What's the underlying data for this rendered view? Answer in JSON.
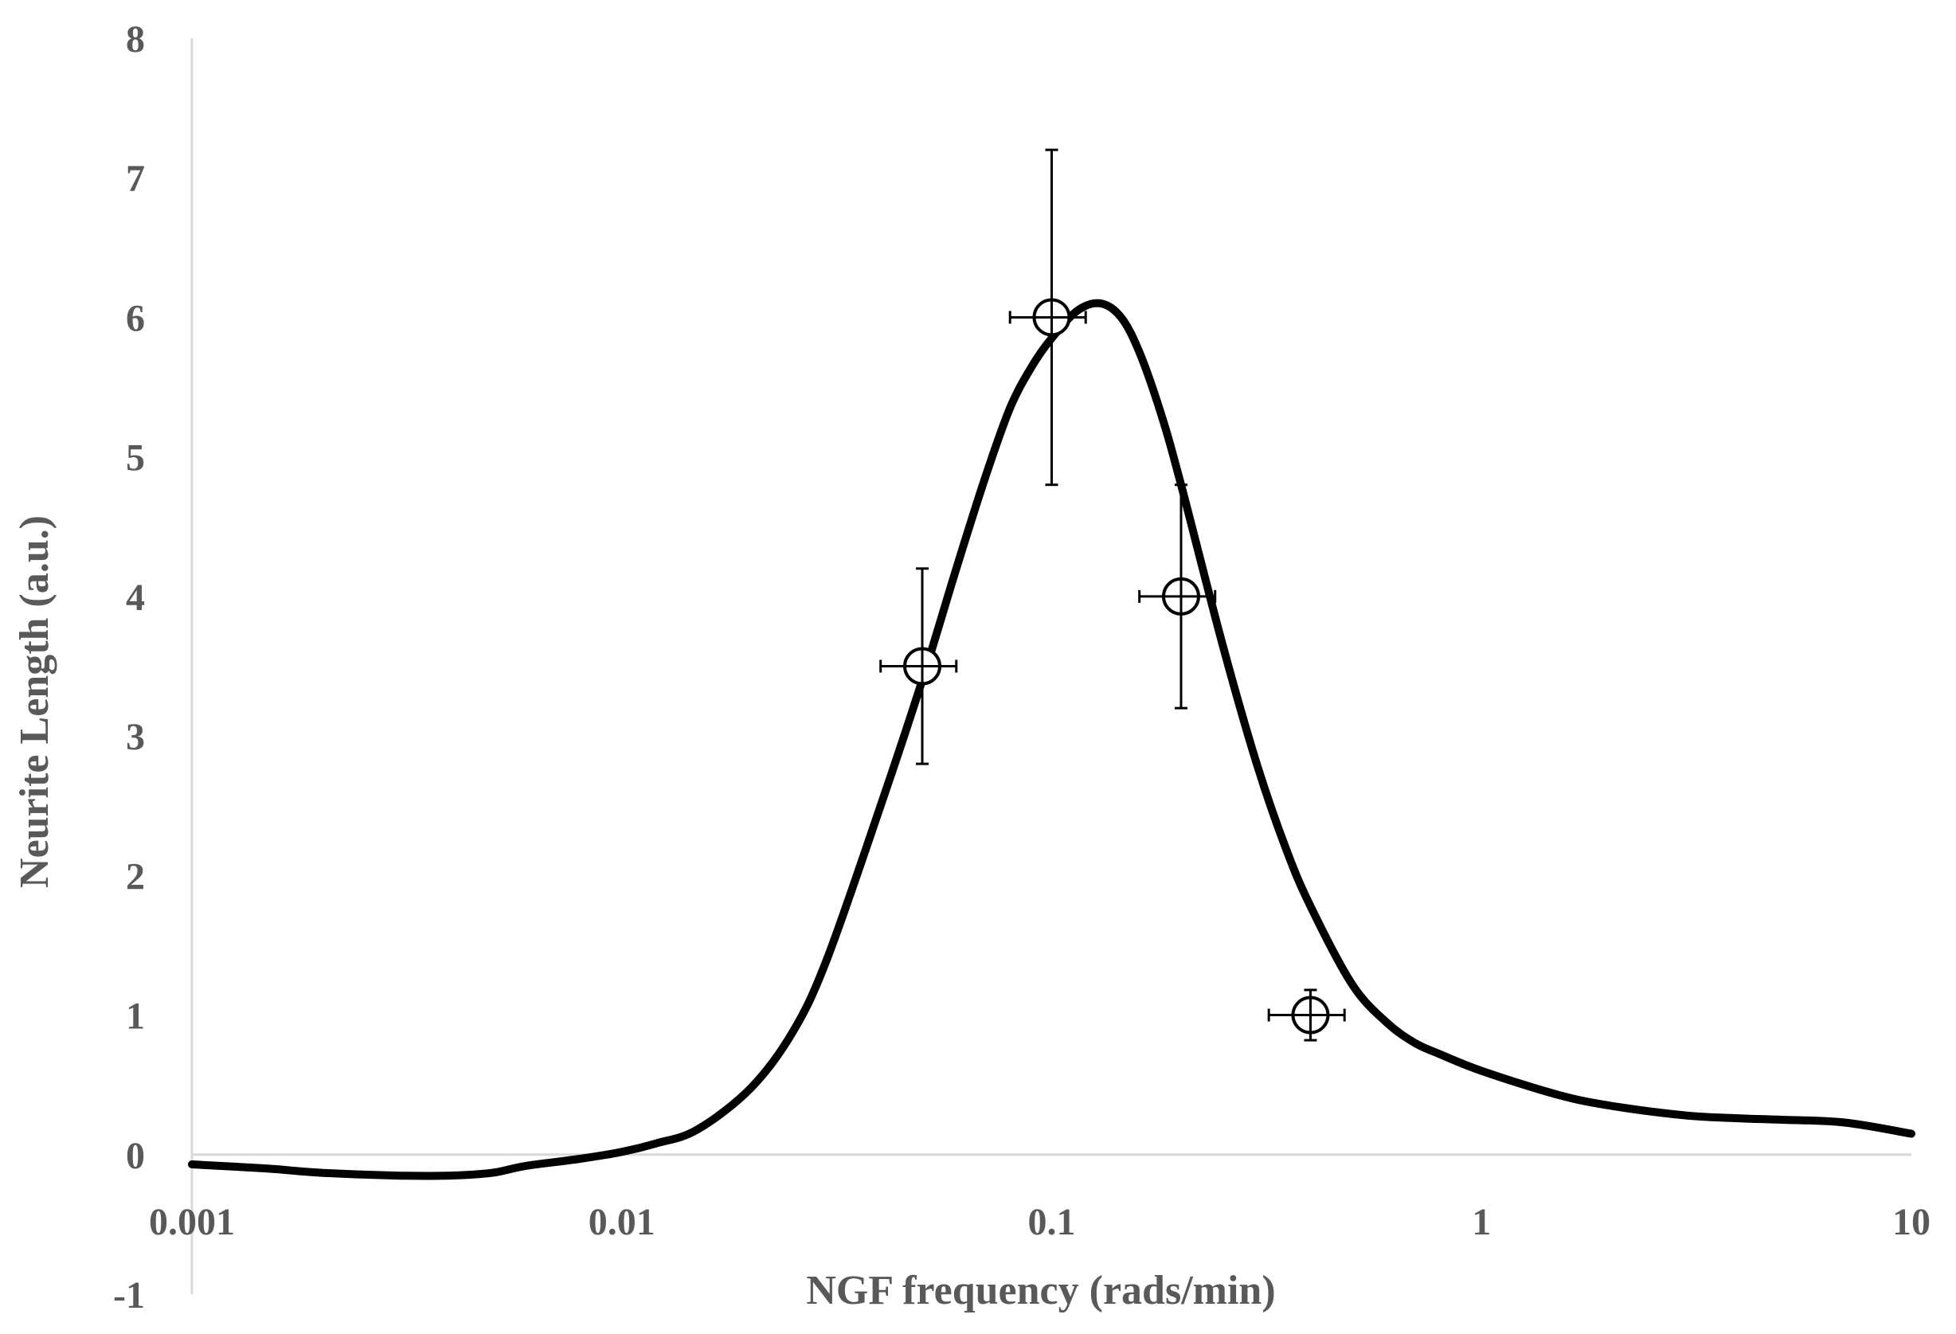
{
  "chart_data": {
    "type": "scatter",
    "xlabel": "NGF frequency  (rads/min)",
    "ylabel": "Neurite Length (a.u.)",
    "x_scale": "log",
    "xlim": [
      0.001,
      10
    ],
    "ylim": [
      -1,
      8
    ],
    "x_ticks": [
      "0.001",
      "0.01",
      "0.1",
      "1",
      "10"
    ],
    "y_ticks": [
      "-1",
      "0",
      "1",
      "2",
      "3",
      "4",
      "5",
      "6",
      "7",
      "8"
    ],
    "grid": false,
    "legend": "none",
    "series": [
      {
        "kind": "points",
        "marker": "circle-crosshair",
        "points": [
          {
            "x": 0.05,
            "y": 3.5,
            "y_err": 0.7,
            "x_err": 0.01
          },
          {
            "x": 0.1,
            "y": 6.0,
            "y_err": 1.2,
            "x_err": 0.02
          },
          {
            "x": 0.2,
            "y": 4.0,
            "y_err": 0.8,
            "x_err": 0.04
          },
          {
            "x": 0.4,
            "y": 1.0,
            "y_err": 0.18,
            "x_err": 0.08
          }
        ]
      },
      {
        "kind": "line",
        "color": "#000000",
        "points": [
          {
            "x": 0.001,
            "y": -0.07
          },
          {
            "x": 0.0015,
            "y": -0.1
          },
          {
            "x": 0.002,
            "y": -0.13
          },
          {
            "x": 0.003,
            "y": -0.15
          },
          {
            "x": 0.004,
            "y": -0.15
          },
          {
            "x": 0.005,
            "y": -0.13
          },
          {
            "x": 0.006,
            "y": -0.08
          },
          {
            "x": 0.008,
            "y": -0.03
          },
          {
            "x": 0.01,
            "y": 0.02
          },
          {
            "x": 0.012,
            "y": 0.08
          },
          {
            "x": 0.015,
            "y": 0.18
          },
          {
            "x": 0.02,
            "y": 0.48
          },
          {
            "x": 0.025,
            "y": 0.88
          },
          {
            "x": 0.03,
            "y": 1.4
          },
          {
            "x": 0.04,
            "y": 2.5
          },
          {
            "x": 0.05,
            "y": 3.4
          },
          {
            "x": 0.06,
            "y": 4.2
          },
          {
            "x": 0.07,
            "y": 4.85
          },
          {
            "x": 0.08,
            "y": 5.35
          },
          {
            "x": 0.09,
            "y": 5.65
          },
          {
            "x": 0.1,
            "y": 5.85
          },
          {
            "x": 0.115,
            "y": 6.05
          },
          {
            "x": 0.13,
            "y": 6.1
          },
          {
            "x": 0.145,
            "y": 6.0
          },
          {
            "x": 0.16,
            "y": 5.75
          },
          {
            "x": 0.18,
            "y": 5.3
          },
          {
            "x": 0.2,
            "y": 4.8
          },
          {
            "x": 0.25,
            "y": 3.65
          },
          {
            "x": 0.3,
            "y": 2.8
          },
          {
            "x": 0.35,
            "y": 2.2
          },
          {
            "x": 0.4,
            "y": 1.78
          },
          {
            "x": 0.5,
            "y": 1.22
          },
          {
            "x": 0.6,
            "y": 0.95
          },
          {
            "x": 0.7,
            "y": 0.8
          },
          {
            "x": 0.8,
            "y": 0.72
          },
          {
            "x": 1.0,
            "y": 0.6
          },
          {
            "x": 1.5,
            "y": 0.43
          },
          {
            "x": 2.0,
            "y": 0.35
          },
          {
            "x": 3.0,
            "y": 0.28
          },
          {
            "x": 4.0,
            "y": 0.26
          },
          {
            "x": 5.0,
            "y": 0.25
          },
          {
            "x": 7.0,
            "y": 0.23
          },
          {
            "x": 10.0,
            "y": 0.15
          }
        ]
      }
    ]
  }
}
